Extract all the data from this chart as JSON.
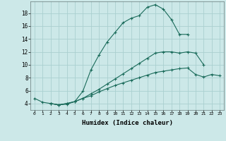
{
  "xlabel": "Humidex (Indice chaleur)",
  "bg_color": "#cce8e8",
  "grid_color": "#aad0d0",
  "line_color": "#1a6b5a",
  "xlim": [
    -0.5,
    23.5
  ],
  "ylim": [
    3.0,
    19.8
  ],
  "xticks": [
    0,
    1,
    2,
    3,
    4,
    5,
    6,
    7,
    8,
    9,
    10,
    11,
    12,
    13,
    14,
    15,
    16,
    17,
    18,
    19,
    20,
    21,
    22,
    23
  ],
  "yticks": [
    4,
    6,
    8,
    10,
    12,
    14,
    16,
    18
  ],
  "series1_x": [
    0,
    1,
    2,
    3,
    4,
    5,
    6,
    7,
    8,
    9,
    10,
    11,
    12,
    13,
    14,
    15,
    16,
    17,
    18,
    19
  ],
  "series1_y": [
    4.8,
    4.2,
    4.0,
    3.8,
    3.9,
    4.3,
    5.9,
    9.2,
    11.5,
    13.5,
    15.0,
    16.5,
    17.2,
    17.6,
    18.9,
    19.3,
    18.6,
    17.0,
    14.7,
    14.7
  ],
  "series2_x": [
    2,
    3,
    4,
    5,
    6,
    7,
    8,
    9,
    10,
    11,
    12,
    13,
    14,
    15,
    16,
    17,
    18,
    19,
    20,
    21
  ],
  "series2_y": [
    4.0,
    3.8,
    4.0,
    4.3,
    4.8,
    5.5,
    6.2,
    7.0,
    7.8,
    8.6,
    9.4,
    10.2,
    11.0,
    11.8,
    12.0,
    12.0,
    11.8,
    12.0,
    11.8,
    10.0
  ],
  "series3_x": [
    2,
    3,
    4,
    5,
    6,
    7,
    8,
    9,
    10,
    11,
    12,
    13,
    14,
    15,
    16,
    17,
    18,
    19,
    20,
    21,
    22,
    23
  ],
  "series3_y": [
    4.0,
    3.8,
    4.0,
    4.3,
    4.8,
    5.2,
    5.8,
    6.3,
    6.8,
    7.2,
    7.6,
    8.0,
    8.4,
    8.8,
    9.0,
    9.2,
    9.4,
    9.5,
    8.5,
    8.1,
    8.5,
    8.3
  ]
}
